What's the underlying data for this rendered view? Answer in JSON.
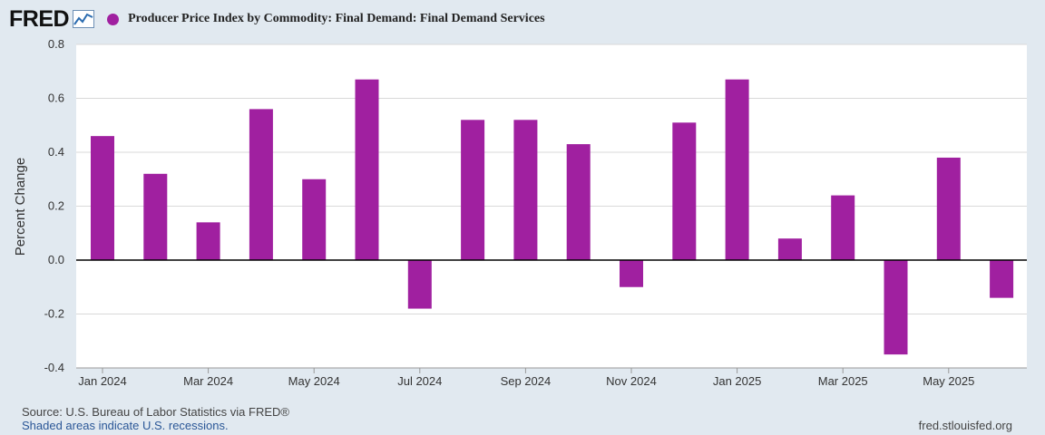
{
  "header": {
    "logo_text": "FRED",
    "series_color": "#a020a0"
  },
  "chart_data": {
    "type": "bar",
    "title": "Producer Price Index by Commodity: Final Demand: Final Demand Services",
    "ylabel": "Percent Change",
    "xlabel": "",
    "ylim": [
      -0.4,
      0.8
    ],
    "yticks": [
      0.8,
      0.6,
      0.4,
      0.2,
      0.0,
      -0.2,
      -0.4
    ],
    "ytick_labels": [
      "0.8",
      "0.6",
      "0.4",
      "0.2",
      "0.0",
      "-0.2",
      "-0.4"
    ],
    "categories": [
      "2024-01",
      "2024-02",
      "2024-03",
      "2024-04",
      "2024-05",
      "2024-06",
      "2024-07",
      "2024-08",
      "2024-09",
      "2024-10",
      "2024-11",
      "2024-12",
      "2025-01",
      "2025-02",
      "2025-03",
      "2025-04",
      "2025-05",
      "2025-06"
    ],
    "values": [
      0.46,
      0.32,
      0.14,
      0.56,
      0.3,
      0.67,
      -0.18,
      0.52,
      0.52,
      0.43,
      -0.1,
      0.51,
      0.67,
      0.08,
      0.24,
      -0.35,
      0.38,
      -0.14
    ],
    "xtick_labels": [
      {
        "index": 0,
        "label": "Jan 2024"
      },
      {
        "index": 2,
        "label": "Mar 2024"
      },
      {
        "index": 4,
        "label": "May 2024"
      },
      {
        "index": 6,
        "label": "Jul 2024"
      },
      {
        "index": 8,
        "label": "Sep 2024"
      },
      {
        "index": 10,
        "label": "Nov 2024"
      },
      {
        "index": 12,
        "label": "Jan 2025"
      },
      {
        "index": 14,
        "label": "Mar 2025"
      },
      {
        "index": 16,
        "label": "May 2025"
      }
    ],
    "grid": true,
    "bar_color": "#a020a0"
  },
  "footer": {
    "source": "Source: U.S. Bureau of Labor Statistics via FRED®",
    "recession_note": "Shaded areas indicate U.S. recessions.",
    "url": "fred.stlouisfed.org"
  }
}
